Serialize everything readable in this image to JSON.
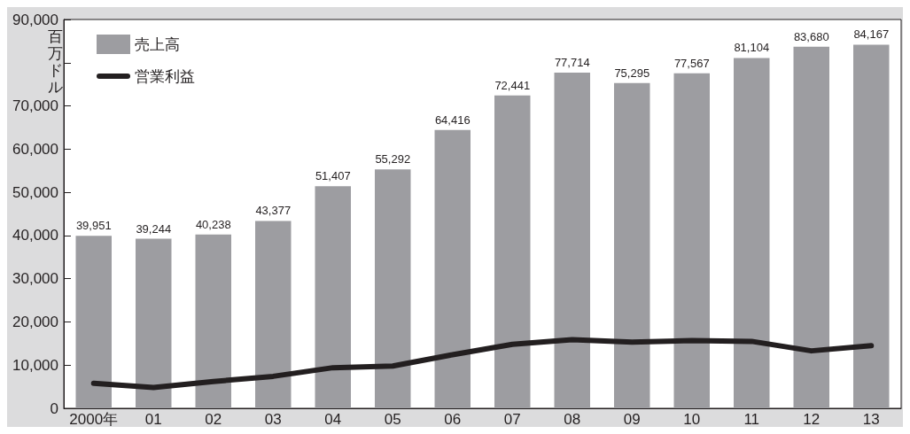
{
  "chart_data": {
    "type": "bar",
    "ylabel": "百万ドル",
    "categories": [
      "2000年",
      "01",
      "02",
      "03",
      "04",
      "05",
      "06",
      "07",
      "08",
      "09",
      "10",
      "11",
      "12",
      "13"
    ],
    "series": [
      {
        "name": "売上高",
        "color": "#9d9da1",
        "values": [
          39951,
          39244,
          40238,
          43377,
          51407,
          55292,
          64416,
          72441,
          77714,
          75295,
          77567,
          81104,
          83680,
          84167
        ],
        "value_labels": [
          "39,951",
          "39,244",
          "40,238",
          "43,377",
          "51,407",
          "55,292",
          "64,416",
          "72,441",
          "77,714",
          "75,295",
          "77,567",
          "81,104",
          "83,680",
          "84,167"
        ]
      },
      {
        "name": "営業利益",
        "type": "line",
        "color": "#231f20",
        "values": [
          5800,
          4800,
          6200,
          7400,
          9400,
          9800,
          12400,
          14800,
          15900,
          15300,
          15700,
          15500,
          13300,
          14500
        ]
      }
    ],
    "ylim": [
      0,
      90000
    ],
    "yticks": [
      {
        "value": 0,
        "label": "0"
      },
      {
        "value": 10000,
        "label": "10,000"
      },
      {
        "value": 20000,
        "label": "20,000"
      },
      {
        "value": 30000,
        "label": "30,000"
      },
      {
        "value": 40000,
        "label": "40,000"
      },
      {
        "value": 50000,
        "label": "50,000"
      },
      {
        "value": 60000,
        "label": "60,000"
      },
      {
        "value": 70000,
        "label": "70,000"
      },
      {
        "value": 80000,
        "label": null
      },
      {
        "value": 90000,
        "label": "90,000"
      }
    ],
    "grid": false,
    "legend": "top left",
    "marker": "none",
    "line_style": "solid"
  }
}
